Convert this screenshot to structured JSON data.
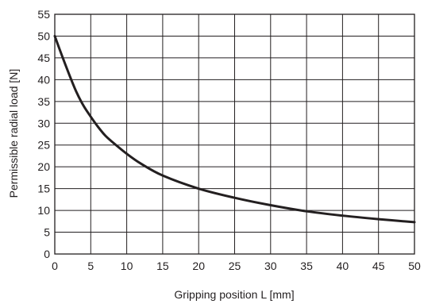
{
  "chart_data": {
    "type": "line",
    "title": "",
    "xlabel": "Gripping position L [mm]",
    "ylabel": "Permissible radial load [N]",
    "xlim": [
      0,
      50
    ],
    "ylim": [
      0,
      55
    ],
    "grid": true,
    "x_ticks": [
      "0",
      "5",
      "10",
      "15",
      "20",
      "25",
      "30",
      "35",
      "40",
      "45",
      "50"
    ],
    "y_ticks": [
      "0",
      "5",
      "10",
      "15",
      "20",
      "25",
      "30",
      "35",
      "40",
      "45",
      "50",
      "55"
    ],
    "series": [
      {
        "x": [
          0,
          1,
          2,
          3,
          4,
          5,
          6,
          7,
          8,
          10,
          12,
          15,
          20,
          25,
          30,
          35,
          40,
          45,
          50
        ],
        "y": [
          50,
          45.5,
          41.2,
          37.2,
          34,
          31.5,
          29.2,
          27.2,
          25.7,
          23,
          20.7,
          18,
          15,
          12.9,
          11.2,
          9.8,
          8.8,
          8,
          7.3
        ]
      }
    ],
    "colors": {
      "line": "#231f20",
      "grid": "#231f20"
    }
  }
}
